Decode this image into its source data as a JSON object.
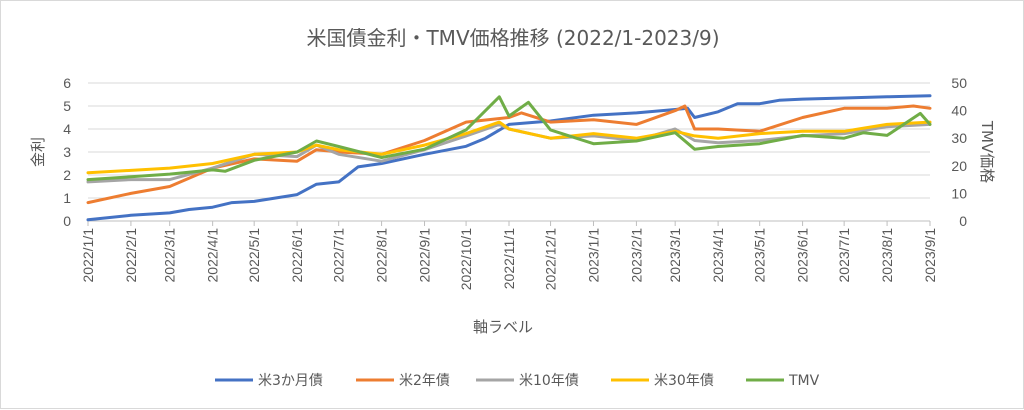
{
  "chart_data": {
    "type": "line",
    "title": "米国債金利・TMV価格推移 (2022/1-2023/9)",
    "xlabel": "軸ラベル",
    "ylabel_left": "金利",
    "ylabel_right": "TMV価格",
    "ylim_left": [
      0,
      6
    ],
    "ylim_right": [
      0,
      50
    ],
    "y_ticks_left": [
      "0",
      "1",
      "2",
      "3",
      "4",
      "5",
      "6"
    ],
    "y_ticks_right": [
      "0",
      "10",
      "20",
      "30",
      "40",
      "50"
    ],
    "x_ticks": [
      "2022/1/1",
      "2022/2/1",
      "2022/3/1",
      "2022/4/1",
      "2022/5/1",
      "2022/6/1",
      "2022/7/1",
      "2022/8/1",
      "2022/9/1",
      "2022/10/1",
      "2022/11/1",
      "2022/12/1",
      "2023/1/1",
      "2023/2/1",
      "2023/3/1",
      "2023/4/1",
      "2023/5/1",
      "2023/6/1",
      "2023/7/1",
      "2023/8/1",
      "2023/9/1"
    ],
    "grid": "horizontal",
    "legend_position": "bottom",
    "series": [
      {
        "name": "米3か月債",
        "color": "#4472C4",
        "axis": "left",
        "x": [
          "2022/1/1",
          "2022/2/1",
          "2022/3/1",
          "2022/3/15",
          "2022/4/1",
          "2022/4/15",
          "2022/5/1",
          "2022/6/1",
          "2022/6/15",
          "2022/7/1",
          "2022/7/15",
          "2022/8/1",
          "2022/9/1",
          "2022/10/1",
          "2022/10/15",
          "2022/11/1",
          "2022/12/1",
          "2023/1/1",
          "2023/2/1",
          "2023/3/1",
          "2023/3/10",
          "2023/3/15",
          "2023/4/1",
          "2023/4/15",
          "2023/5/1",
          "2023/5/15",
          "2023/6/1",
          "2023/7/1",
          "2023/8/1",
          "2023/9/1"
        ],
        "values": [
          0.05,
          0.25,
          0.35,
          0.5,
          0.6,
          0.8,
          0.85,
          1.15,
          1.6,
          1.7,
          2.35,
          2.5,
          2.9,
          3.25,
          3.6,
          4.2,
          4.35,
          4.6,
          4.7,
          4.85,
          4.9,
          4.5,
          4.75,
          5.1,
          5.1,
          5.25,
          5.3,
          5.35,
          5.4,
          5.45
        ]
      },
      {
        "name": "米2年債",
        "color": "#ED7D31",
        "axis": "left",
        "x": [
          "2022/1/1",
          "2022/2/1",
          "2022/3/1",
          "2022/4/1",
          "2022/5/1",
          "2022/6/1",
          "2022/6/15",
          "2022/7/1",
          "2022/8/1",
          "2022/9/1",
          "2022/10/1",
          "2022/11/1",
          "2022/11/10",
          "2022/12/1",
          "2023/1/1",
          "2023/2/1",
          "2023/3/1",
          "2023/3/8",
          "2023/3/15",
          "2023/4/1",
          "2023/5/1",
          "2023/6/1",
          "2023/7/1",
          "2023/8/1",
          "2023/8/20",
          "2023/9/1"
        ],
        "values": [
          0.8,
          1.2,
          1.5,
          2.3,
          2.7,
          2.6,
          3.1,
          3.0,
          2.9,
          3.5,
          4.3,
          4.5,
          4.7,
          4.3,
          4.4,
          4.2,
          4.8,
          5.0,
          4.0,
          4.0,
          3.9,
          4.5,
          4.9,
          4.9,
          5.0,
          4.9
        ]
      },
      {
        "name": "米10年債",
        "color": "#A5A5A5",
        "axis": "left",
        "x": [
          "2022/1/1",
          "2022/2/1",
          "2022/3/1",
          "2022/4/1",
          "2022/5/1",
          "2022/6/1",
          "2022/6/15",
          "2022/7/1",
          "2022/8/1",
          "2022/9/1",
          "2022/10/1",
          "2022/10/25",
          "2022/11/1",
          "2022/12/1",
          "2023/1/1",
          "2023/2/1",
          "2023/3/1",
          "2023/3/15",
          "2023/4/1",
          "2023/5/1",
          "2023/6/1",
          "2023/7/1",
          "2023/8/1",
          "2023/9/1"
        ],
        "values": [
          1.7,
          1.8,
          1.8,
          2.3,
          2.9,
          2.8,
          3.3,
          2.9,
          2.6,
          3.1,
          3.7,
          4.2,
          4.0,
          3.6,
          3.7,
          3.5,
          4.0,
          3.5,
          3.4,
          3.5,
          3.7,
          3.8,
          4.1,
          4.2
        ]
      },
      {
        "name": "米30年債",
        "color": "#FFC000",
        "axis": "left",
        "x": [
          "2022/1/1",
          "2022/2/1",
          "2022/3/1",
          "2022/4/1",
          "2022/5/1",
          "2022/6/1",
          "2022/6/15",
          "2022/7/1",
          "2022/8/1",
          "2022/9/1",
          "2022/10/1",
          "2022/10/25",
          "2022/11/1",
          "2022/12/1",
          "2023/1/1",
          "2023/2/1",
          "2023/3/1",
          "2023/3/15",
          "2023/4/1",
          "2023/5/1",
          "2023/6/1",
          "2023/7/1",
          "2023/8/1",
          "2023/9/1"
        ],
        "values": [
          2.1,
          2.2,
          2.3,
          2.5,
          2.9,
          3.0,
          3.3,
          3.1,
          2.9,
          3.3,
          3.8,
          4.3,
          4.0,
          3.6,
          3.8,
          3.6,
          3.9,
          3.7,
          3.6,
          3.8,
          3.9,
          3.9,
          4.2,
          4.3
        ]
      },
      {
        "name": "TMV",
        "color": "#70AD47",
        "axis": "right",
        "x": [
          "2022/1/1",
          "2022/2/1",
          "2022/3/1",
          "2022/4/1",
          "2022/4/10",
          "2022/5/1",
          "2022/6/1",
          "2022/6/15",
          "2022/7/1",
          "2022/8/1",
          "2022/9/1",
          "2022/10/1",
          "2022/10/25",
          "2022/11/1",
          "2022/11/15",
          "2022/12/1",
          "2023/1/1",
          "2023/2/1",
          "2023/3/1",
          "2023/3/15",
          "2023/4/1",
          "2023/5/1",
          "2023/6/1",
          "2023/7/1",
          "2023/7/15",
          "2023/8/1",
          "2023/8/25",
          "2023/9/1"
        ],
        "values": [
          15,
          16,
          17,
          18.5,
          18,
          22,
          25,
          29,
          27,
          23,
          26,
          33,
          45,
          38,
          43,
          33,
          28,
          29,
          32,
          26,
          27,
          28,
          31,
          30,
          32,
          31,
          39,
          35
        ]
      }
    ]
  }
}
